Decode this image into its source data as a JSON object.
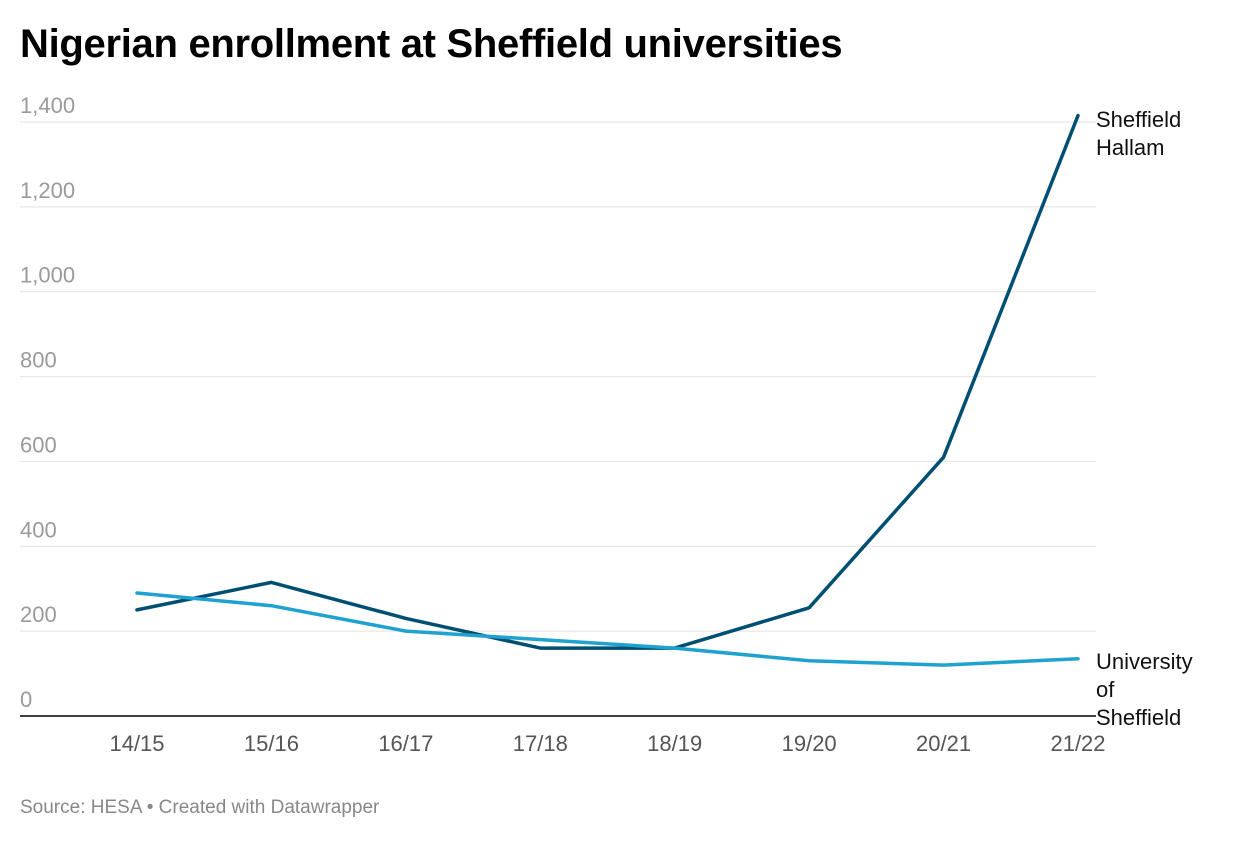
{
  "title": "Nigerian enrollment at Sheffield universities",
  "footer": {
    "source": "Source: HESA",
    "separator": " • ",
    "credit": "Created with Datawrapper"
  },
  "chart_data": {
    "type": "line",
    "title": "Nigerian enrollment at Sheffield universities",
    "xlabel": "",
    "ylabel": "",
    "categories": [
      "14/15",
      "15/16",
      "16/17",
      "17/18",
      "18/19",
      "19/20",
      "20/21",
      "21/22"
    ],
    "ylim": [
      0,
      1400
    ],
    "yticks": [
      0,
      200,
      400,
      600,
      800,
      1000,
      1200,
      1400
    ],
    "ytick_labels": [
      "0",
      "200",
      "400",
      "600",
      "800",
      "1,000",
      "1,200",
      "1,400"
    ],
    "grid": "horizontal",
    "legend": "direct labels at line ends",
    "series": [
      {
        "name": "Sheffield Hallam",
        "label_lines": [
          "Sheffield",
          "Hallam"
        ],
        "color": "#004f73",
        "values": [
          250,
          315,
          230,
          160,
          160,
          255,
          610,
          1415
        ]
      },
      {
        "name": "University of Sheffield",
        "label_lines": [
          "University",
          "of",
          "Sheffield"
        ],
        "color": "#1fa2cf",
        "values": [
          290,
          260,
          200,
          180,
          160,
          130,
          120,
          135
        ]
      }
    ]
  }
}
